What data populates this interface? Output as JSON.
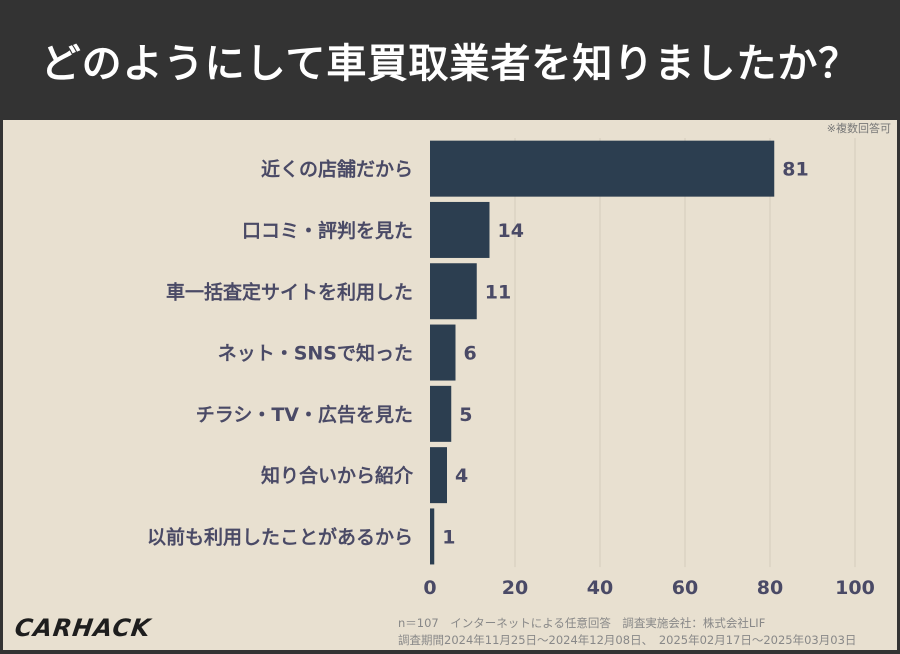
{
  "title": "どのようにして車買取業者を知りましたか？",
  "note": "※複数回答可",
  "footer": {
    "line1": "n＝107　インターネットによる任意回答　調査実施会社：株式会社LIF",
    "line2": "調査期間2024年11月25日～2024年12月08日、　2025年02月17日～2025年03月03日"
  },
  "logo": "CARHACK",
  "chart_data": {
    "type": "bar",
    "orientation": "horizontal",
    "categories": [
      "近くの店舗だから",
      "口コミ・評判を見た",
      "車一括査定サイトを利用した",
      "ネット・SNSで知った",
      "チラシ・TV・広告を見た",
      "知り合いから紹介",
      "以前も利用したことがあるから"
    ],
    "values": [
      81,
      14,
      11,
      6,
      5,
      4,
      1
    ],
    "xlim": [
      0,
      100
    ],
    "xticks": [
      0,
      20,
      40,
      60,
      80,
      100
    ],
    "grid": true,
    "bar_color": "#2c3e50"
  }
}
